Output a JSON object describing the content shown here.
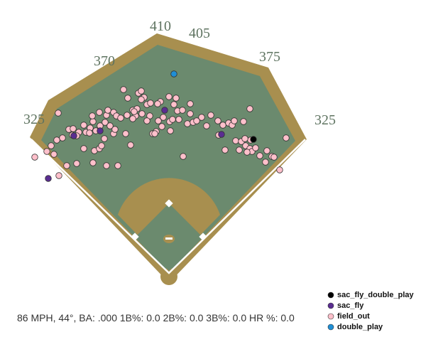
{
  "chart_data": {
    "type": "scatter",
    "annotation": "86 MPH, 44°, BA: .000 1B%: 0.0 2B%: 0.0 3B%: 0.0 HR %: 0.0",
    "fence_distances": [
      410,
      405,
      370,
      375,
      325,
      325
    ],
    "xlim": [
      -237,
      380
    ],
    "ylim": [
      -92,
      382
    ],
    "series": [
      {
        "name": "sac_fly_double_play",
        "color": "#000000",
        "x": [
          120
        ],
        "values": [
          186
        ]
      },
      {
        "name": "sac_fly",
        "color": "#5a2d91",
        "x": [
          -169,
          -133,
          -96,
          -5,
          75
        ],
        "values": [
          131,
          191,
          198,
          227,
          193
        ]
      },
      {
        "name": "field_out",
        "color": "#ffc0cb",
        "x": [
          -188,
          -171,
          -161,
          -154,
          -143,
          -129,
          -165,
          -157,
          -149,
          -140,
          -134,
          -126,
          -119,
          -116,
          -110,
          -106,
          -102,
          -96,
          -89,
          -82,
          -77,
          -75,
          -87,
          -97,
          -85,
          -77,
          -107,
          -119,
          -104,
          -97,
          -94,
          -90,
          -106,
          -87,
          -71,
          -129,
          -135,
          -111,
          -73,
          -67,
          -60,
          -53,
          -155,
          -63,
          -57,
          -42,
          -38,
          -50,
          -44,
          -37,
          -26,
          -30,
          -25,
          -11,
          1,
          11,
          8,
          13,
          -7,
          2,
          -14,
          -22,
          -17,
          -9,
          3,
          6,
          15,
          20,
          27,
          35,
          31,
          31,
          40,
          47,
          54,
          60,
          70,
          77,
          71,
          85,
          90,
          93,
          106,
          115,
          80,
          95,
          103,
          100,
          109,
          115,
          118,
          111,
          123,
          129,
          139,
          137,
          146,
          149,
          157,
          166,
          116,
          108,
          21,
          -34,
          -38,
          -58,
          -46,
          -50,
          -30,
          -19,
          -15,
          -48
        ],
        "values": [
          161,
          169,
          165,
          135,
          149,
          152,
          177,
          185,
          188,
          200,
          201,
          196,
          206,
          196,
          202,
          211,
          198,
          205,
          210,
          205,
          194,
          200,
          220,
          224,
          227,
          224,
          219,
          173,
          170,
          173,
          177,
          187,
          153,
          149,
          149,
          191,
          192,
          195,
          219,
          216,
          194,
          178,
          223,
          256,
          244,
          251,
          254,
          227,
          229,
          222,
          219,
          235,
          237,
          239,
          246,
          244,
          235,
          226,
          217,
          211,
          212,
          194,
          197,
          204,
          198,
          214,
          214,
          227,
          208,
          210,
          222,
          236,
          212,
          217,
          205,
          220,
          212,
          206,
          192,
          209,
          206,
          212,
          211,
          229,
          171,
          184,
          183,
          171,
          177,
          173,
          169,
          168,
          174,
          163,
          170,
          154,
          162,
          161,
          143,
          188,
          185,
          187,
          162,
          245,
          242,
          220,
          219,
          215,
          212,
          194,
          236,
          225
        ]
      },
      {
        "name": "double_play",
        "color": "#1f8fd6",
        "x": [
          8
        ],
        "values": [
          278
        ]
      }
    ]
  }
}
